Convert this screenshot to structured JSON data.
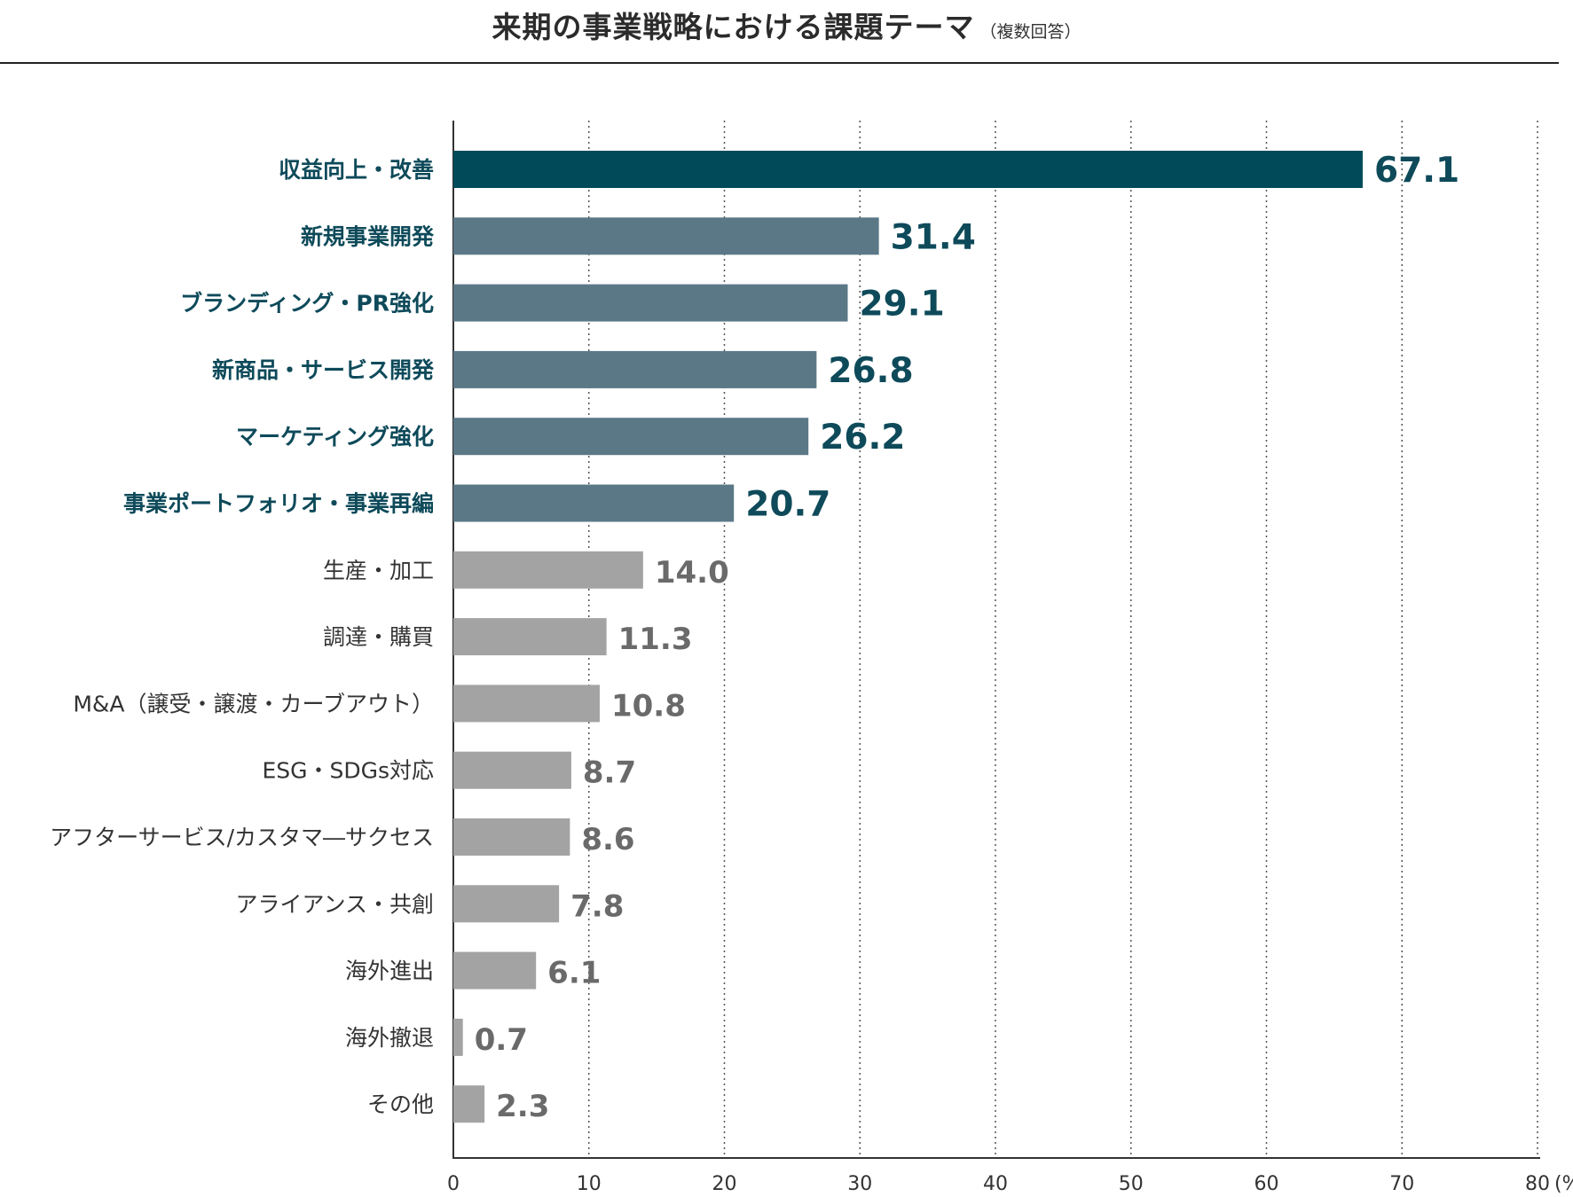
{
  "header": {
    "title": "来期の事業戦略における課題テーマ",
    "subtitle": "（複数回答）"
  },
  "chart_data": {
    "type": "bar",
    "orientation": "horizontal",
    "title": "来期の事業戦略における課題テーマ",
    "subtitle": "（複数回答）",
    "categories": [
      "収益向上・改善",
      "新規事業開発",
      "ブランディング・PR強化",
      "新商品・サービス開発",
      "マーケティング強化",
      "事業ポートフォリオ・事業再編",
      "生産・加工",
      "調達・購買",
      "M&A（譲受・譲渡・カーブアウト）",
      "ESG・SDGs対応",
      "アフターサービス/カスタマ―サクセス",
      "アライアンス・共創",
      "海外進出",
      "海外撤退",
      "その他"
    ],
    "values": [
      67.1,
      31.4,
      29.1,
      26.8,
      26.2,
      20.7,
      14.0,
      11.3,
      10.8,
      8.7,
      8.6,
      7.8,
      6.1,
      0.7,
      2.3
    ],
    "value_labels": [
      "67.1",
      "31.4",
      "29.1",
      "26.8",
      "26.2",
      "20.7",
      "14.0",
      "11.3",
      "10.8",
      "8.7",
      "8.6",
      "7.8",
      "6.1",
      "0.7",
      "2.3"
    ],
    "tiers": [
      "top",
      "high",
      "high",
      "high",
      "high",
      "high",
      "other",
      "other",
      "other",
      "other",
      "other",
      "other",
      "other",
      "other",
      "other"
    ],
    "colors": {
      "top_bar": "#004a5a",
      "high_bar": "#5b7887",
      "other_bar": "#a3a3a3",
      "top_text": "#0e4a5a",
      "high_text": "#0e4a5a",
      "other_text": "#6a6a6a",
      "other_label": "#333333",
      "grid": "#555555",
      "axis": "#333333"
    },
    "xlim": [
      0,
      80
    ],
    "xticks": [
      0,
      10,
      20,
      30,
      40,
      50,
      60,
      70,
      80
    ],
    "xtick_labels": [
      "0",
      "10",
      "20",
      "30",
      "40",
      "50",
      "60",
      "70",
      "80"
    ],
    "xunit": "(%)",
    "grid": "dotted vertical"
  }
}
